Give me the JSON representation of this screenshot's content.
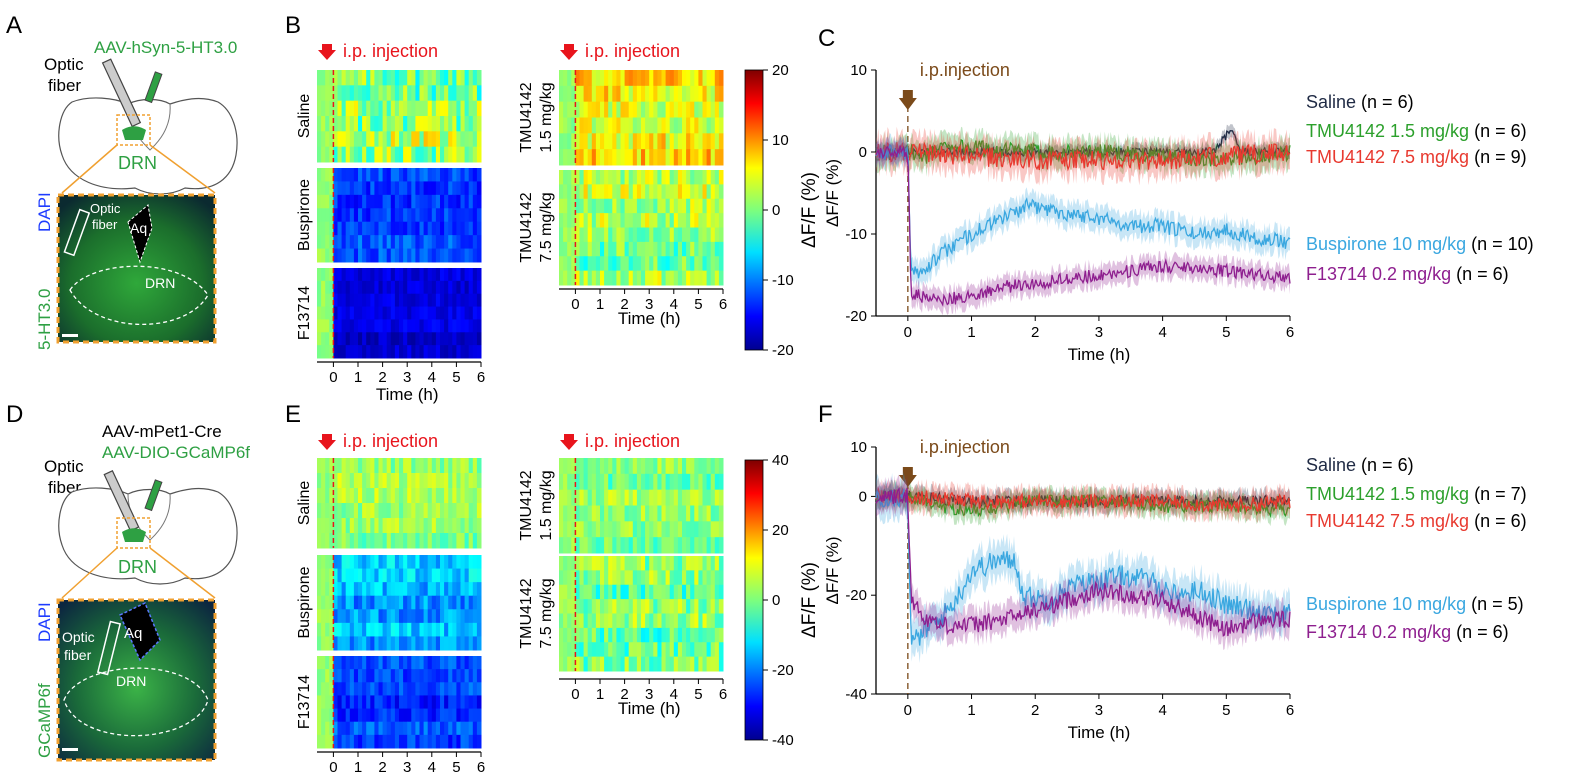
{
  "panels": {
    "A": {
      "letter": "A",
      "virus": "AAV-hSyn-5-HT3.0",
      "fiber_l1": "Optic",
      "fiber_l2": "fiber",
      "region": "DRN",
      "inset_stain": "DAPI",
      "inset_sensor": "5-HT3.0",
      "inset_fiber_l1": "Optic",
      "inset_fiber_l2": "fiber",
      "inset_aq": "Aq",
      "inset_region": "DRN"
    },
    "B": {
      "letter": "B"
    },
    "C": {
      "letter": "C"
    },
    "D": {
      "letter": "D",
      "virus1": "AAV-mPet1-Cre",
      "virus2": "AAV-DIO-GCaMP6f",
      "fiber_l1": "Optic",
      "fiber_l2": "fiber",
      "region": "DRN",
      "inset_stain": "DAPI",
      "inset_sensor": "GCaMP6f",
      "inset_fiber_l1": "Optic",
      "inset_fiber_l2": "fiber",
      "inset_aq": "Aq",
      "inset_region": "DRN"
    },
    "E": {
      "letter": "E"
    },
    "F": {
      "letter": "F"
    }
  },
  "heatmaps": {
    "injection_label": "i.p. injection",
    "time_label": "Time (h)",
    "cbar_label": "ΔF/F (%)",
    "left_names": [
      "Saline",
      "Buspirone",
      "F13714"
    ],
    "right_names": [
      [
        "TMU4142",
        "1.5 mg/kg"
      ],
      [
        "TMU4142",
        "7.5 mg/kg"
      ]
    ],
    "time_ticks": [
      "0",
      "1",
      "2",
      "3",
      "4",
      "5",
      "6"
    ],
    "cbar_ticks_top": [
      "20",
      "10",
      "0",
      "-10",
      "-20"
    ],
    "cbar_ticks_bottom": [
      "40",
      "20",
      "0",
      "-20",
      "-40"
    ]
  },
  "colors": {
    "saline": "#1f2a44",
    "tmu15": "#2ca02c",
    "tmu75": "#e8392f",
    "buspirone": "#3aa7e0",
    "f13714": "#8e1f8f",
    "injection_red": "#e8141c",
    "injection_brown": "#7b4a1a",
    "region_green": "#2ea043"
  },
  "chart_data": [
    {
      "type": "line",
      "panel": "C",
      "title": "",
      "annotation": "i.p.injection",
      "xlabel": "Time (h)",
      "ylabel": "ΔF/F (%)",
      "xlim": [
        -0.5,
        6
      ],
      "ylim": [
        -20,
        10
      ],
      "xticks": [
        0,
        1,
        2,
        3,
        4,
        5,
        6
      ],
      "yticks": [
        10,
        0,
        -10,
        -20
      ],
      "legend_placement": "right",
      "series": [
        {
          "name": "Saline",
          "n": "(n = 6)",
          "color_key": "saline",
          "noise": 0.5,
          "x": [
            -0.5,
            0,
            1,
            2,
            3,
            4,
            4.8,
            5.1,
            5.2,
            5.5,
            6
          ],
          "y": [
            0,
            0,
            0,
            0,
            0,
            0,
            0,
            3,
            0,
            0,
            0
          ]
        },
        {
          "name": "TMU4142 1.5 mg/kg",
          "n": "(n = 6)",
          "color_key": "tmu15",
          "noise": 1.0,
          "x": [
            -0.5,
            0,
            0.3,
            0.6,
            1,
            2,
            3,
            4,
            5,
            6
          ],
          "y": [
            0,
            0,
            -0.5,
            1,
            0.5,
            0,
            0,
            -0.5,
            -1,
            0
          ]
        },
        {
          "name": "TMU4142 7.5 mg/kg",
          "n": "(n = 9)",
          "color_key": "tmu75",
          "noise": 1.2,
          "x": [
            -0.5,
            0,
            1,
            2,
            3,
            4,
            5,
            6
          ],
          "y": [
            0,
            0,
            -0.5,
            -1,
            -1,
            -1,
            -0.5,
            0
          ]
        },
        {
          "name": "Buspirone 10 mg/kg",
          "n": "(n = 10)",
          "color_key": "buspirone",
          "noise": 0.9,
          "x": [
            -0.5,
            0,
            0.05,
            0.3,
            0.6,
            1.0,
            1.5,
            1.9,
            2.5,
            3.0,
            3.5,
            4.0,
            4.5,
            5.0,
            5.5,
            6.0
          ],
          "y": [
            0,
            0,
            -15,
            -14,
            -12,
            -10,
            -8,
            -6.5,
            -7.5,
            -8,
            -9,
            -9,
            -10,
            -9.5,
            -10.5,
            -11
          ]
        },
        {
          "name": "F13714 0.2 mg/kg",
          "n": "(n = 6)",
          "color_key": "f13714",
          "noise": 0.8,
          "x": [
            -0.5,
            0,
            0.05,
            0.3,
            0.6,
            1.0,
            1.5,
            2.0,
            2.5,
            3.0,
            3.5,
            4.0,
            4.5,
            5.0,
            5.5,
            6.0
          ],
          "y": [
            0,
            0,
            -17,
            -18,
            -18,
            -17.5,
            -16.5,
            -16,
            -15.5,
            -15,
            -14.5,
            -14,
            -14,
            -14.5,
            -15,
            -15.5
          ]
        }
      ]
    },
    {
      "type": "line",
      "panel": "F",
      "title": "",
      "annotation": "i.p.injection",
      "xlabel": "Time (h)",
      "ylabel": "ΔF/F (%)",
      "xlim": [
        -0.5,
        6
      ],
      "ylim": [
        -40,
        10
      ],
      "xticks": [
        0,
        1,
        2,
        3,
        4,
        5,
        6
      ],
      "yticks": [
        10,
        0,
        -20,
        -40
      ],
      "legend_placement": "right",
      "series": [
        {
          "name": "Saline",
          "n": "(n = 6)",
          "color_key": "saline",
          "noise": 1.2,
          "x": [
            -0.5,
            0,
            1,
            2,
            3,
            4,
            5,
            6
          ],
          "y": [
            0,
            0,
            -1,
            -1,
            -1,
            -1,
            -1,
            -1
          ]
        },
        {
          "name": "TMU4142 1.5 mg/kg",
          "n": "(n = 7)",
          "color_key": "tmu15",
          "noise": 1.3,
          "x": [
            -0.5,
            0,
            0.5,
            1,
            2,
            3,
            4,
            5,
            6
          ],
          "y": [
            0,
            0,
            -2,
            -3,
            -1,
            -1,
            -2,
            -2,
            -3
          ]
        },
        {
          "name": "TMU4142 7.5 mg/kg",
          "n": "(n = 6)",
          "color_key": "tmu75",
          "noise": 1.5,
          "x": [
            -0.5,
            0,
            1,
            2,
            3,
            4,
            5,
            6
          ],
          "y": [
            0,
            0,
            -1,
            -1,
            -1,
            -1,
            -2,
            -1
          ]
        },
        {
          "name": "Buspirone 10 mg/kg",
          "n": "(n = 5)",
          "color_key": "buspirone",
          "noise": 2.2,
          "x": [
            -0.5,
            0,
            0.05,
            0.2,
            0.5,
            0.8,
            1.0,
            1.4,
            1.7,
            1.8,
            2.2,
            2.6,
            3.0,
            3.4,
            3.8,
            4.2,
            4.6,
            5.0,
            5.5,
            6.0
          ],
          "y": [
            0,
            0,
            -30,
            -28,
            -25,
            -20,
            -15,
            -13,
            -13,
            -20,
            -21,
            -18,
            -17,
            -16,
            -17,
            -20,
            -19,
            -22,
            -23,
            -24
          ]
        },
        {
          "name": "F13714 0.2 mg/kg",
          "n": "(n = 6)",
          "color_key": "f13714",
          "noise": 1.8,
          "x": [
            -0.5,
            0,
            0.05,
            0.2,
            0.5,
            1.0,
            1.5,
            2.0,
            2.5,
            3.0,
            3.5,
            4.0,
            4.5,
            5.0,
            5.5,
            6.0
          ],
          "y": [
            0,
            0,
            -20,
            -24,
            -26,
            -26,
            -25,
            -23,
            -21,
            -19,
            -20,
            -21,
            -24,
            -27,
            -25,
            -25
          ]
        }
      ]
    }
  ]
}
